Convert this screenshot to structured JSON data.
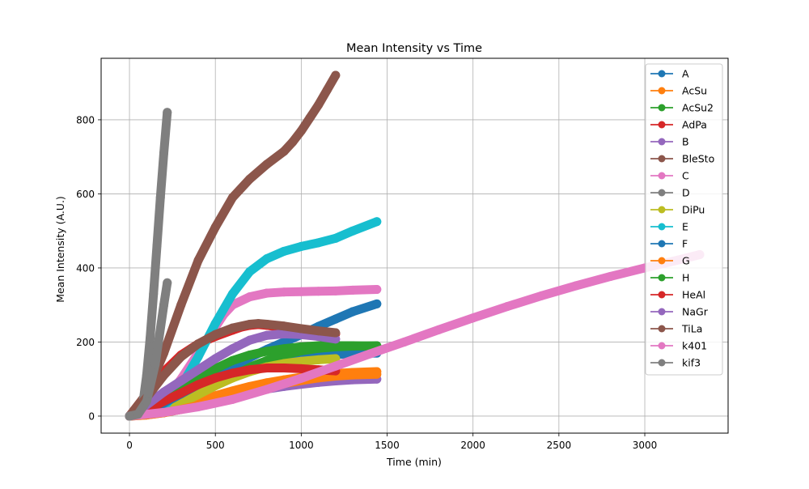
{
  "chart_data": {
    "type": "line",
    "title": "Mean Intensity vs Time",
    "xlabel": "Time (min)",
    "ylabel": "Mean Intensity (A.U.)",
    "xlim": [
      -165,
      3485
    ],
    "ylim": [
      -46,
      966
    ],
    "xticks": [
      0,
      500,
      1000,
      1500,
      2000,
      2500,
      3000
    ],
    "yticks": [
      0,
      200,
      400,
      600,
      800
    ],
    "grid": true,
    "legend_position": "top-right",
    "marker": "circle",
    "series": [
      {
        "name": "A",
        "color": "#1f77b4",
        "x": [
          0,
          100,
          200,
          300,
          400,
          500,
          600,
          700,
          800,
          900,
          1000,
          1100,
          1200,
          1300,
          1440
        ],
        "y": [
          0,
          10,
          28,
          50,
          72,
          92,
          110,
          125,
          138,
          148,
          156,
          162,
          166,
          169,
          170
        ]
      },
      {
        "name": "AcSu",
        "color": "#ff7f0e",
        "x": [
          0,
          100,
          200,
          300,
          400,
          500,
          600,
          700,
          800,
          900,
          1000,
          1100,
          1200,
          1300,
          1440
        ],
        "y": [
          0,
          5,
          14,
          26,
          40,
          55,
          68,
          80,
          90,
          98,
          105,
          111,
          115,
          118,
          120
        ]
      },
      {
        "name": "AcSu2",
        "color": "#2ca02c",
        "x": [
          0,
          100,
          200,
          300,
          400,
          500,
          600,
          700,
          800,
          900,
          1000,
          1100,
          1200,
          1300,
          1440
        ],
        "y": [
          0,
          8,
          22,
          42,
          65,
          90,
          112,
          132,
          150,
          165,
          176,
          183,
          187,
          189,
          190
        ]
      },
      {
        "name": "AdPa",
        "color": "#d62728",
        "x": [
          0,
          100,
          200,
          300,
          400,
          500,
          600,
          650,
          700,
          750,
          800,
          900,
          1000,
          1100,
          1200
        ],
        "y": [
          0,
          60,
          120,
          165,
          195,
          215,
          232,
          240,
          245,
          247,
          245,
          238,
          232,
          226,
          222
        ]
      },
      {
        "name": "B",
        "color": "#9467bd",
        "x": [
          0,
          100,
          200,
          300,
          400,
          500,
          600,
          700,
          800,
          900,
          1000,
          1100,
          1200,
          1300,
          1440
        ],
        "y": [
          0,
          3,
          9,
          18,
          29,
          41,
          53,
          64,
          73,
          80,
          86,
          91,
          95,
          98,
          100
        ]
      },
      {
        "name": "BleSto",
        "color": "#8c564b",
        "x": [
          0,
          100,
          200,
          300,
          400,
          500,
          600,
          700,
          800,
          900,
          950,
          1000,
          1050,
          1100,
          1150,
          1200
        ],
        "y": [
          0,
          60,
          170,
          300,
          420,
          510,
          590,
          640,
          680,
          715,
          740,
          770,
          805,
          840,
          880,
          920
        ]
      },
      {
        "name": "C",
        "color": "#e377c2",
        "x": [
          0,
          100,
          200,
          300,
          400,
          500,
          550,
          600,
          700,
          800,
          900,
          1000,
          1100,
          1200,
          1300,
          1440
        ],
        "y": [
          0,
          10,
          40,
          100,
          170,
          240,
          275,
          300,
          322,
          332,
          335,
          336,
          337,
          338,
          340,
          342
        ]
      },
      {
        "name": "D",
        "color": "#7f7f7f",
        "x": [
          0,
          40,
          60,
          80,
          100,
          120,
          140,
          160,
          180,
          200,
          220
        ],
        "y": [
          0,
          2,
          10,
          40,
          110,
          210,
          330,
          460,
          590,
          710,
          820
        ]
      },
      {
        "name": "DiPu",
        "color": "#bcbd22",
        "x": [
          0,
          100,
          200,
          300,
          400,
          500,
          600,
          700,
          800,
          900,
          1000,
          1100,
          1200
        ],
        "y": [
          0,
          6,
          18,
          35,
          58,
          82,
          103,
          120,
          133,
          142,
          148,
          152,
          155
        ]
      },
      {
        "name": "E",
        "color": "#17becf",
        "x": [
          0,
          100,
          200,
          300,
          400,
          500,
          600,
          700,
          800,
          900,
          1000,
          1100,
          1200,
          1300,
          1440
        ],
        "y": [
          0,
          5,
          25,
          80,
          160,
          250,
          330,
          390,
          425,
          445,
          458,
          468,
          480,
          500,
          525
        ]
      },
      {
        "name": "F",
        "color": "#1f77b4",
        "x": [
          0,
          100,
          200,
          300,
          400,
          500,
          600,
          700,
          800,
          900,
          1000,
          1100,
          1200,
          1300,
          1440
        ],
        "y": [
          0,
          12,
          35,
          60,
          85,
          110,
          135,
          158,
          180,
          200,
          220,
          242,
          262,
          282,
          303
        ]
      },
      {
        "name": "G",
        "color": "#ff7f0e",
        "x": [
          0,
          100,
          200,
          300,
          400,
          500,
          600,
          700,
          800,
          900,
          1000,
          1100,
          1200,
          1300,
          1440
        ],
        "y": [
          0,
          3,
          9,
          18,
          29,
          42,
          55,
          67,
          78,
          88,
          96,
          103,
          108,
          111,
          113
        ]
      },
      {
        "name": "H",
        "color": "#2ca02c",
        "x": [
          0,
          100,
          200,
          300,
          400,
          500,
          600,
          700,
          800,
          900,
          1000,
          1100,
          1200,
          1300,
          1440
        ],
        "y": [
          0,
          20,
          45,
          70,
          100,
          128,
          150,
          165,
          175,
          182,
          187,
          190,
          190,
          190,
          189
        ]
      },
      {
        "name": "HeAl",
        "color": "#d62728",
        "x": [
          0,
          100,
          200,
          300,
          400,
          500,
          600,
          700,
          800,
          900,
          1000,
          1100,
          1200
        ],
        "y": [
          0,
          15,
          40,
          62,
          85,
          103,
          116,
          125,
          130,
          130,
          128,
          125,
          122
        ]
      },
      {
        "name": "NaGr",
        "color": "#9467bd",
        "x": [
          0,
          100,
          200,
          300,
          400,
          500,
          600,
          700,
          800,
          900,
          1000,
          1100,
          1200
        ],
        "y": [
          0,
          30,
          65,
          95,
          125,
          155,
          182,
          205,
          218,
          222,
          220,
          215,
          208
        ]
      },
      {
        "name": "TiLa",
        "color": "#8c564b",
        "x": [
          0,
          100,
          200,
          300,
          400,
          500,
          600,
          700,
          750,
          800,
          900,
          1000,
          1100,
          1200
        ],
        "y": [
          0,
          50,
          110,
          160,
          195,
          220,
          238,
          248,
          250,
          248,
          243,
          236,
          230,
          225
        ]
      },
      {
        "name": "k401",
        "color": "#e377c2",
        "x": [
          0,
          200,
          400,
          600,
          800,
          1000,
          1200,
          1400,
          1600,
          1800,
          2000,
          2200,
          2400,
          2600,
          2800,
          3000,
          3200,
          3320
        ],
        "y": [
          0,
          10,
          25,
          45,
          72,
          102,
          135,
          168,
          200,
          233,
          265,
          296,
          325,
          352,
          377,
          400,
          422,
          436
        ]
      },
      {
        "name": "kif3",
        "color": "#7f7f7f",
        "x": [
          0,
          50,
          100,
          150,
          200,
          220
        ],
        "y": [
          0,
          5,
          40,
          140,
          300,
          360
        ]
      }
    ]
  }
}
